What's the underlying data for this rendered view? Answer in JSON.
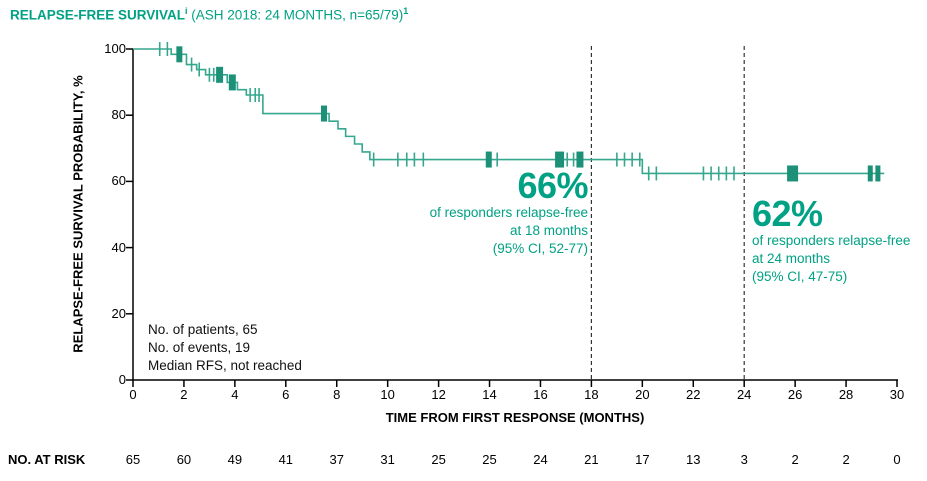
{
  "title": {
    "main": "RELAPSE-FREE SURVIVAL",
    "sup1": "i",
    "suffix": " (ASH 2018: 24 MONTHS, n=65/79)",
    "sup2": "1"
  },
  "colors": {
    "accent": "#00A184",
    "curve": "#35A78E",
    "censor_bold": "#1D9177",
    "axis": "#000000",
    "dashed": "#333333"
  },
  "callouts": [
    {
      "value": "66%",
      "line1": "of responders relapse-free",
      "line2": "at 18 months",
      "line3": "(95% CI, 52-77)"
    },
    {
      "value": "62%",
      "line1": "of responders relapse-free",
      "line2": "at 24 months",
      "line3": "(95% CI, 47-75)"
    }
  ],
  "stats": {
    "line1": "No. of patients, 65",
    "line2": "No. of events, 19",
    "line3": "Median RFS, not reached"
  },
  "at_risk": {
    "label": "NO. AT RISK"
  },
  "chart_data": {
    "type": "line",
    "subtype": "kaplan_meier_step",
    "title": "RELAPSE-FREE SURVIVAL (ASH 2018: 24 MONTHS, n=65/79)",
    "xlabel": "TIME FROM FIRST RESPONSE (MONTHS)",
    "ylabel": "RELAPSE-FREE SURVIVAL PROBABILITY, %",
    "xlim": [
      0,
      30
    ],
    "ylim": [
      0,
      100
    ],
    "xticks": [
      0,
      2,
      4,
      6,
      8,
      10,
      12,
      14,
      16,
      18,
      20,
      22,
      24,
      26,
      28,
      30
    ],
    "yticks": [
      0,
      20,
      40,
      60,
      80,
      100
    ],
    "grid": false,
    "legend": "none",
    "reference_lines_x": [
      18,
      24
    ],
    "series": [
      {
        "name": "Responders relapse-free",
        "steps": [
          [
            0,
            100
          ],
          [
            1.5,
            98.4
          ],
          [
            2.1,
            95.3
          ],
          [
            2.5,
            93.8
          ],
          [
            2.85,
            92.2
          ],
          [
            3.7,
            89.9
          ],
          [
            4.1,
            87.7
          ],
          [
            4.45,
            86.1
          ],
          [
            5.1,
            80.5
          ],
          [
            7.7,
            78.2
          ],
          [
            8.05,
            75.9
          ],
          [
            8.35,
            73.6
          ],
          [
            8.7,
            71.3
          ],
          [
            9.0,
            68.9
          ],
          [
            9.3,
            66.6
          ],
          [
            20.0,
            62.4
          ]
        ],
        "end_time": 29.5,
        "censor_marks": [
          [
            1.05,
            100
          ],
          [
            1.35,
            100
          ],
          [
            2.3,
            95.3
          ],
          [
            2.6,
            93.8
          ],
          [
            3.0,
            92.2
          ],
          [
            3.17,
            92.2
          ],
          [
            4.6,
            86.1
          ],
          [
            4.8,
            86.1
          ],
          [
            4.95,
            86.1
          ],
          [
            9.45,
            66.6
          ],
          [
            10.4,
            66.6
          ],
          [
            10.75,
            66.6
          ],
          [
            11.05,
            66.6
          ],
          [
            11.4,
            66.6
          ],
          [
            14.3,
            66.6
          ],
          [
            17.05,
            66.6
          ],
          [
            17.3,
            66.6
          ],
          [
            19.0,
            66.6
          ],
          [
            19.3,
            66.6
          ],
          [
            19.6,
            66.6
          ],
          [
            19.9,
            66.6
          ],
          [
            20.25,
            62.4
          ],
          [
            20.55,
            62.4
          ],
          [
            22.4,
            62.4
          ],
          [
            22.7,
            62.4
          ],
          [
            23.0,
            62.4
          ],
          [
            23.3,
            62.4
          ],
          [
            23.6,
            62.4
          ]
        ],
        "censor_marks_bold": [
          [
            1.82,
            98.4,
            6
          ],
          [
            3.4,
            92.2,
            7
          ],
          [
            3.9,
            89.9,
            7
          ],
          [
            7.5,
            80.5,
            6
          ],
          [
            13.97,
            66.6,
            6
          ],
          [
            16.75,
            66.6,
            9
          ],
          [
            17.55,
            66.6,
            7
          ],
          [
            25.9,
            62.4,
            11
          ],
          [
            28.95,
            62.4,
            5
          ],
          [
            29.25,
            62.4,
            5
          ]
        ]
      }
    ],
    "key_points": [
      {
        "time_months": 18,
        "survival_pct": 66,
        "ci95": "52-77"
      },
      {
        "time_months": 24,
        "survival_pct": 62,
        "ci95": "47-75"
      }
    ],
    "n_patients": 65,
    "n_events": 19,
    "median_rfs": "not reached",
    "no_at_risk": {
      "times": [
        0,
        2,
        4,
        6,
        8,
        10,
        12,
        14,
        16,
        18,
        20,
        22,
        24,
        26,
        28,
        30
      ],
      "values": [
        65,
        60,
        49,
        41,
        37,
        31,
        25,
        25,
        24,
        21,
        17,
        13,
        3,
        2,
        2,
        0
      ]
    }
  }
}
